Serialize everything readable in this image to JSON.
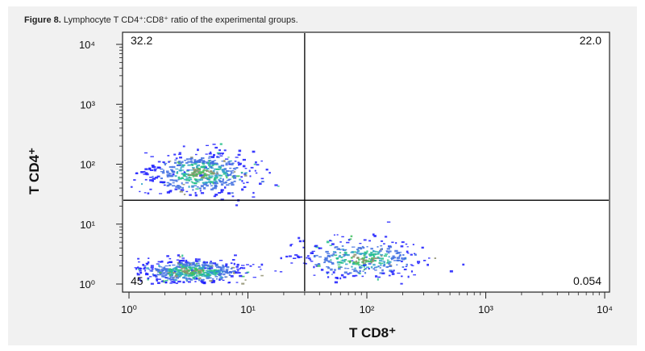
{
  "caption": {
    "figure_label": "Figure 8.",
    "text": " Lymphocyte T CD4⁺:CD8⁺ ratio of the experimental groups."
  },
  "chart_data": {
    "type": "scatter",
    "title": "",
    "xlabel": "T CD8⁺",
    "ylabel": "T CD4⁺",
    "x_scale": "log",
    "y_scale": "log",
    "xlim": [
      1,
      10000
    ],
    "ylim": [
      1,
      10000
    ],
    "x_ticks": [
      {
        "value": 1,
        "label": "10⁰"
      },
      {
        "value": 10,
        "label": "10¹"
      },
      {
        "value": 100,
        "label": "10²"
      },
      {
        "value": 1000,
        "label": "10³"
      },
      {
        "value": 10000,
        "label": "10⁴"
      }
    ],
    "y_ticks": [
      {
        "value": 1,
        "label": "10⁰"
      },
      {
        "value": 10,
        "label": "10¹"
      },
      {
        "value": 100,
        "label": "10²"
      },
      {
        "value": 1000,
        "label": "10³"
      },
      {
        "value": 10000,
        "label": "10⁴"
      }
    ],
    "gates": {
      "x": 30,
      "y": 25
    },
    "quadrants": [
      {
        "name": "upper-left",
        "value": "32.2"
      },
      {
        "name": "upper-right",
        "value": "22.0"
      },
      {
        "name": "lower-left",
        "value": "45"
      },
      {
        "name": "lower-right",
        "value": "0.054"
      }
    ],
    "populations": [
      {
        "id": "cd4-single-positive",
        "center": [
          4,
          70
        ],
        "spread": [
          0.22,
          0.18
        ],
        "count": 520
      },
      {
        "id": "double-negative",
        "center": [
          3.5,
          1.6
        ],
        "spread": [
          0.22,
          0.1
        ],
        "count": 560
      },
      {
        "id": "cd8-single-positive",
        "center": [
          90,
          2.6
        ],
        "spread": [
          0.26,
          0.16
        ],
        "count": 380
      }
    ],
    "density_colors": [
      "#1a1aff",
      "#3f6fe0",
      "#2fa3c8",
      "#24c08a",
      "#3fbf5f",
      "#8f8f6f"
    ],
    "gate_line_color": "#000000"
  }
}
